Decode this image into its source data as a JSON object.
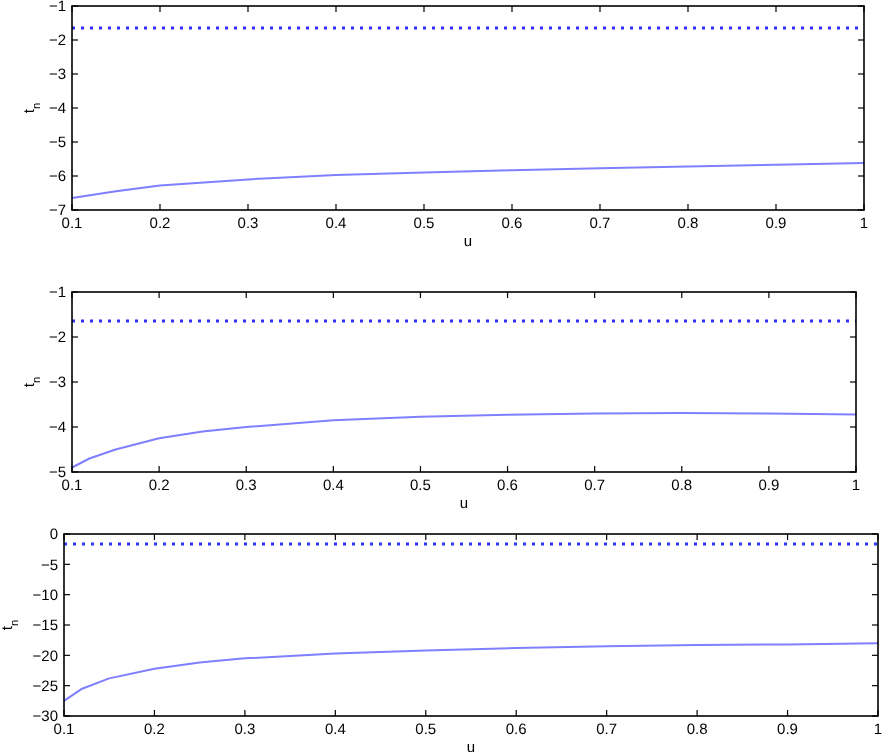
{
  "chart_data": [
    {
      "type": "line",
      "xlabel": "u",
      "ylabel": "t$_{n}$",
      "xlim": [
        0.1,
        1
      ],
      "ylim": [
        -7,
        -1
      ],
      "xticks": [
        0.1,
        0.2,
        0.3,
        0.4,
        0.5,
        0.6,
        0.7,
        0.8,
        0.9,
        1
      ],
      "yticks": [
        -7,
        -6,
        -5,
        -4,
        -3,
        -2,
        -1
      ],
      "grid": false,
      "line_style": "solid",
      "marker": "none",
      "x": [
        0.1,
        0.15,
        0.2,
        0.3,
        0.4,
        0.5,
        0.6,
        0.7,
        0.8,
        0.9,
        1
      ],
      "series": [
        {
          "color": "#7f7fff",
          "values": [
            -6.65,
            -6.45,
            -6.28,
            -6.1,
            -5.97,
            -5.9,
            -5.83,
            -5.77,
            -5.72,
            -5.67,
            -5.62
          ]
        }
      ],
      "ref_lines": [
        {
          "axis": "y",
          "value": -1.645,
          "color": "#3030ff",
          "line_style": "dotted"
        }
      ]
    },
    {
      "type": "line",
      "xlabel": "u",
      "ylabel": "t$_{n}$",
      "xlim": [
        0.1,
        1
      ],
      "ylim": [
        -5,
        -1
      ],
      "xticks": [
        0.1,
        0.2,
        0.3,
        0.4,
        0.5,
        0.6,
        0.7,
        0.8,
        0.9,
        1
      ],
      "yticks": [
        -5,
        -4,
        -3,
        -2,
        -1
      ],
      "grid": false,
      "line_style": "solid",
      "marker": "none",
      "x": [
        0.1,
        0.12,
        0.15,
        0.2,
        0.25,
        0.3,
        0.4,
        0.5,
        0.6,
        0.7,
        0.8,
        0.9,
        1
      ],
      "series": [
        {
          "color": "#7f7fff",
          "values": [
            -4.9,
            -4.7,
            -4.5,
            -4.25,
            -4.1,
            -4.0,
            -3.85,
            -3.77,
            -3.73,
            -3.7,
            -3.69,
            -3.7,
            -3.72
          ]
        }
      ],
      "ref_lines": [
        {
          "axis": "y",
          "value": -1.645,
          "color": "#3030ff",
          "line_style": "dotted"
        }
      ]
    },
    {
      "type": "line",
      "xlabel": "u",
      "ylabel": "t$_{n}$",
      "xlim": [
        0.1,
        1
      ],
      "ylim": [
        -30,
        0
      ],
      "xticks": [
        0.1,
        0.2,
        0.3,
        0.4,
        0.5,
        0.6,
        0.7,
        0.8,
        0.9,
        1
      ],
      "yticks": [
        -30,
        -25,
        -20,
        -15,
        -10,
        -5,
        0
      ],
      "grid": false,
      "line_style": "solid",
      "marker": "none",
      "x": [
        0.1,
        0.12,
        0.15,
        0.2,
        0.25,
        0.3,
        0.4,
        0.5,
        0.6,
        0.7,
        0.8,
        0.9,
        1
      ],
      "series": [
        {
          "color": "#7f7fff",
          "values": [
            -27.5,
            -25.5,
            -23.8,
            -22.2,
            -21.2,
            -20.5,
            -19.7,
            -19.2,
            -18.8,
            -18.5,
            -18.3,
            -18.2,
            -18.0
          ]
        }
      ],
      "ref_lines": [
        {
          "axis": "y",
          "value": -1.645,
          "color": "#3030ff",
          "line_style": "dotted"
        }
      ]
    }
  ]
}
